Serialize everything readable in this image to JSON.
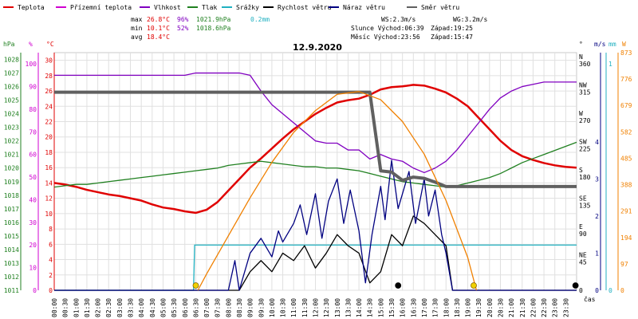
{
  "legend": [
    {
      "label": "Teplota",
      "color": "#e00000"
    },
    {
      "label": "Přízemní teplota",
      "color": "#d000d0"
    },
    {
      "label": "Vlhkost",
      "color": "#8000c0"
    },
    {
      "label": "Tlak",
      "color": "#208020"
    },
    {
      "label": "Srážky",
      "color": "#20b0c0"
    },
    {
      "label": "Rychlost větru",
      "color": "#000000"
    },
    {
      "label": "Náraz větru",
      "color": "#000080"
    },
    {
      "label": "Směr větru",
      "color": "#606060"
    }
  ],
  "stats": {
    "max_label": "max",
    "max_temp": "26.8°C",
    "max_hum": "96%",
    "max_press": "1021.9hPa",
    "max_rain": "0.2mm",
    "min_label": "min",
    "min_temp": "10.1°C",
    "min_hum": "52%",
    "min_press": "1018.6hPa",
    "avg_label": "avg",
    "avg_temp": "18.4°C",
    "ws": "WS:2.3m/s",
    "wg": "WG:3.2m/s",
    "sun_rise": "Slunce Východ:06:39",
    "sun_set": "Západ:19:25",
    "moon_rise": "Měsíc  Východ:23:56",
    "moon_set": "Západ:15:47"
  },
  "chart_data": {
    "type": "line",
    "title": "12.9.2020",
    "xlabel": "čas",
    "axis_units": {
      "pressure": "hPa",
      "humidity": "%",
      "temperature": "°C",
      "direction": "°",
      "wind": "m/s",
      "rain": "mm",
      "solar": "W"
    },
    "x_ticks": [
      "00:00",
      "00:30",
      "01:00",
      "01:30",
      "02:00",
      "02:30",
      "03:00",
      "03:30",
      "04:00",
      "04:30",
      "05:00",
      "05:30",
      "06:00",
      "06:30",
      "07:00",
      "07:30",
      "08:00",
      "08:30",
      "09:00",
      "09:30",
      "10:00",
      "10:30",
      "11:00",
      "11:30",
      "12:00",
      "12:30",
      "13:00",
      "13:30",
      "14:00",
      "14:30",
      "15:00",
      "15:30",
      "16:00",
      "16:30",
      "17:00",
      "17:30",
      "18:00",
      "18:30",
      "19:00",
      "19:30",
      "20:00",
      "20:30",
      "21:00",
      "21:30",
      "22:00",
      "22:30",
      "23:00",
      "23:30"
    ],
    "y_axes": {
      "pressure": {
        "ticks": [
          "1011",
          "1012",
          "1013",
          "1014",
          "1015",
          "1016",
          "1017",
          "1018",
          "1019",
          "1020",
          "1021",
          "1022",
          "1023",
          "1024",
          "1025",
          "1026",
          "1027",
          "1028"
        ],
        "range": [
          1011,
          1028.5
        ]
      },
      "humidity": {
        "ticks": [
          "0",
          "10",
          "20",
          "30",
          "40",
          "50",
          "60",
          "70",
          "80",
          "90",
          "100"
        ],
        "range": [
          0,
          105
        ]
      },
      "temperature": {
        "ticks": [
          "0",
          "2",
          "4",
          "6",
          "8",
          "10",
          "12",
          "14",
          "16",
          "18",
          "20",
          "22",
          "24",
          "26",
          "28",
          "30"
        ],
        "range": [
          0,
          31
        ]
      },
      "direction": {
        "ticks": [
          "0",
          "45",
          "90",
          "135",
          "180",
          "225",
          "270",
          "315",
          "360"
        ],
        "labels": [
          "",
          "NE",
          "E",
          "SE",
          "S",
          "SW",
          "W",
          "NW",
          "N"
        ],
        "range": [
          0,
          378
        ]
      },
      "wind": {
        "ticks": [
          "0",
          "1",
          "2",
          "3",
          "4"
        ],
        "range": [
          0,
          6.4
        ]
      },
      "rain": {
        "ticks": [
          "0",
          "1"
        ],
        "range": [
          0,
          1.05
        ]
      },
      "solar": {
        "ticks": [
          "0",
          "97",
          "194",
          "291",
          "388",
          "485",
          "582",
          "679",
          "776",
          "873"
        ],
        "range": [
          0,
          873
        ]
      }
    },
    "series": [
      {
        "name": "Teplota",
        "axis": "temperature",
        "color": "#e00000",
        "x": [
          0,
          0.5,
          1,
          1.5,
          2,
          2.5,
          3,
          3.5,
          4,
          4.5,
          5,
          5.5,
          6,
          6.5,
          7,
          7.5,
          8,
          8.5,
          9,
          9.5,
          10,
          10.5,
          11,
          11.5,
          12,
          12.5,
          13,
          13.5,
          14,
          14.5,
          15,
          15.5,
          16,
          16.5,
          17,
          17.5,
          18,
          18.5,
          19,
          19.5,
          20,
          20.5,
          21,
          21.5,
          22,
          22.5,
          23,
          23.5,
          24
        ],
        "y": [
          14.0,
          13.8,
          13.5,
          13.1,
          12.8,
          12.5,
          12.3,
          12.0,
          11.7,
          11.2,
          10.8,
          10.6,
          10.3,
          10.1,
          10.5,
          11.5,
          13.0,
          14.5,
          16.0,
          17.2,
          18.5,
          19.8,
          21.0,
          22.0,
          23.0,
          23.8,
          24.5,
          24.8,
          25.0,
          25.5,
          26.2,
          26.5,
          26.6,
          26.8,
          26.7,
          26.3,
          25.8,
          25.0,
          24.0,
          22.5,
          21.0,
          19.5,
          18.3,
          17.5,
          17.0,
          16.6,
          16.3,
          16.1,
          16.0
        ]
      },
      {
        "name": "Vlhkost",
        "axis": "humidity",
        "color": "#8000c0",
        "x": [
          0,
          0.5,
          1,
          1.5,
          2,
          2.5,
          3,
          3.5,
          4,
          4.5,
          5,
          5.5,
          6,
          6.5,
          7,
          7.5,
          8,
          8.5,
          9,
          9.5,
          10,
          10.5,
          11,
          11.5,
          12,
          12.5,
          13,
          13.5,
          14,
          14.5,
          15,
          15.5,
          16,
          16.5,
          17,
          17.5,
          18,
          18.5,
          19,
          19.5,
          20,
          20.5,
          21,
          21.5,
          22,
          22.5,
          23,
          23.5,
          24
        ],
        "y": [
          95,
          95,
          95,
          95,
          95,
          95,
          95,
          95,
          95,
          95,
          95,
          95,
          95,
          96,
          96,
          96,
          96,
          96,
          95,
          88,
          82,
          78,
          74,
          70,
          66,
          65,
          65,
          62,
          62,
          58,
          60,
          58,
          57,
          54,
          52,
          54,
          57,
          62,
          68,
          74,
          80,
          85,
          88,
          90,
          91,
          92,
          92,
          92,
          92
        ]
      },
      {
        "name": "Tlak",
        "axis": "pressure",
        "color": "#208020",
        "x": [
          0,
          0.5,
          1,
          1.5,
          2,
          2.5,
          3,
          3.5,
          4,
          4.5,
          5,
          5.5,
          6,
          6.5,
          7,
          7.5,
          8,
          8.5,
          9,
          9.5,
          10,
          10.5,
          11,
          11.5,
          12,
          12.5,
          13,
          13.5,
          14,
          14.5,
          15,
          15.5,
          16,
          16.5,
          17,
          17.5,
          18,
          18.5,
          19,
          19.5,
          20,
          20.5,
          21,
          21.5,
          22,
          22.5,
          23,
          23.5,
          24
        ],
        "y": [
          1018.6,
          1018.7,
          1018.8,
          1018.8,
          1018.9,
          1019.0,
          1019.1,
          1019.2,
          1019.3,
          1019.4,
          1019.5,
          1019.6,
          1019.7,
          1019.8,
          1019.9,
          1020.0,
          1020.2,
          1020.3,
          1020.4,
          1020.5,
          1020.4,
          1020.3,
          1020.2,
          1020.1,
          1020.1,
          1020.0,
          1020.0,
          1019.9,
          1019.8,
          1019.6,
          1019.4,
          1019.2,
          1019.0,
          1018.9,
          1018.8,
          1018.7,
          1018.6,
          1018.7,
          1018.9,
          1019.1,
          1019.3,
          1019.6,
          1020.0,
          1020.4,
          1020.7,
          1021.0,
          1021.3,
          1021.6,
          1021.9
        ]
      },
      {
        "name": "Srážky",
        "axis": "rain",
        "color": "#20b0c0",
        "x": [
          0,
          6.4,
          6.45,
          24
        ],
        "y": [
          0,
          0,
          0.2,
          0.2
        ]
      },
      {
        "name": "Rychlost větru",
        "axis": "wind",
        "color": "#000000",
        "x": [
          0,
          8,
          8.5,
          9,
          9.5,
          10,
          10.5,
          11,
          11.5,
          12,
          12.5,
          13,
          13.5,
          14,
          14.5,
          15,
          15.5,
          16,
          16.5,
          17,
          17.5,
          18,
          18.3,
          24
        ],
        "y": [
          0,
          0,
          0,
          0.5,
          0.8,
          0.5,
          1.0,
          0.8,
          1.2,
          0.6,
          1.0,
          1.5,
          1.2,
          1.0,
          0.2,
          0.5,
          1.5,
          1.2,
          2.0,
          1.8,
          1.5,
          1.2,
          0,
          0
        ]
      },
      {
        "name": "Náraz větru",
        "axis": "wind",
        "color": "#000080",
        "x": [
          0,
          8,
          8.3,
          8.5,
          8.8,
          9,
          9.5,
          10,
          10.3,
          10.5,
          11,
          11.3,
          11.6,
          12,
          12.3,
          12.6,
          13,
          13.3,
          13.6,
          14,
          14.3,
          14.6,
          15,
          15.2,
          15.5,
          15.8,
          16,
          16.3,
          16.6,
          17,
          17.2,
          17.5,
          17.8,
          18,
          18.3,
          24
        ],
        "y": [
          0,
          0,
          0.8,
          0,
          0.6,
          1.0,
          1.4,
          0.9,
          1.6,
          1.3,
          1.8,
          2.3,
          1.5,
          2.6,
          1.4,
          2.4,
          3.0,
          1.8,
          2.7,
          1.6,
          0.2,
          1.5,
          2.8,
          1.9,
          3.5,
          2.2,
          2.6,
          3.2,
          1.8,
          3.0,
          2.0,
          2.7,
          1.5,
          1.0,
          0,
          0
        ]
      },
      {
        "name": "Směr větru",
        "axis": "direction",
        "color": "#606060",
        "x": [
          0,
          14.5,
          15,
          15.5,
          16,
          16.5,
          17,
          17.5,
          18,
          24
        ],
        "y": [
          315,
          315,
          190,
          188,
          175,
          180,
          178,
          172,
          165,
          165
        ]
      },
      {
        "name": "Solar",
        "axis": "solar",
        "color": "#f08000",
        "x": [
          6.6,
          7,
          8,
          9,
          10,
          11,
          12,
          13,
          14,
          15,
          16,
          17,
          18,
          19,
          19.4
        ],
        "y": [
          0,
          60,
          200,
          340,
          470,
          580,
          660,
          720,
          730,
          700,
          620,
          500,
          330,
          120,
          0
        ]
      }
    ],
    "sun_markers_hours": [
      6.65,
      19.42
    ],
    "moon_markers_hours": [
      15.8,
      23.95
    ]
  }
}
